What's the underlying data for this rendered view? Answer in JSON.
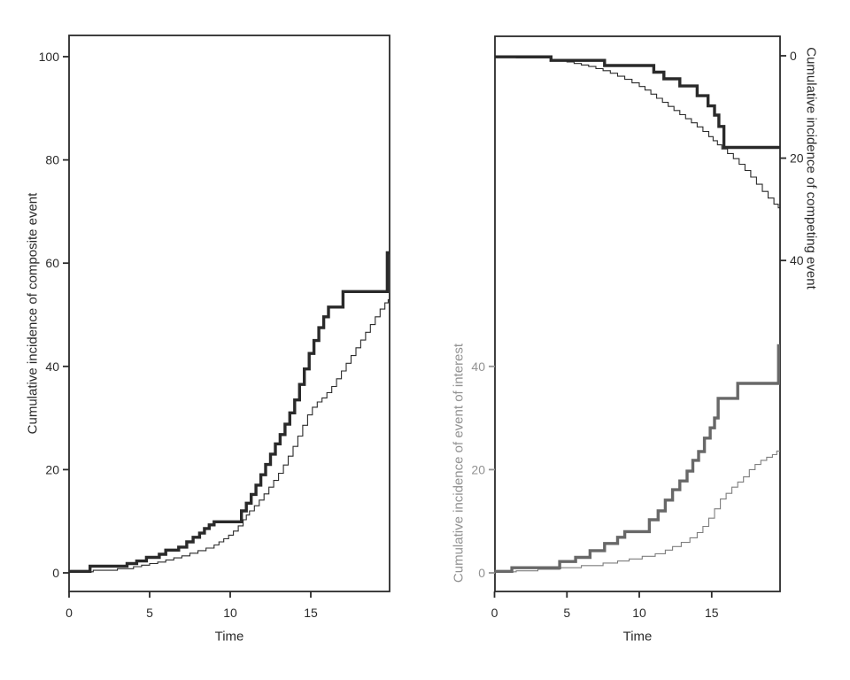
{
  "figure": {
    "background": "#ffffff"
  },
  "colors": {
    "black": "#2a2a2a",
    "gray_thick": "#686868",
    "gray_thin": "#7e7e7e",
    "gray_text": "#929292"
  },
  "chart_data": [
    {
      "type": "line",
      "subtype": "step",
      "title": "",
      "xlabel": "Time",
      "ylabel": "Cumulative incidence of composite event",
      "x_ticks": [
        0,
        5,
        10,
        15
      ],
      "y_ticks": [
        0,
        20,
        40,
        60,
        80,
        100
      ],
      "xlim": [
        0,
        19.9
      ],
      "ylim": [
        0,
        100
      ],
      "grid": false,
      "legend": false,
      "series": [
        {
          "name": "composite-thick",
          "line": "thick",
          "color": "#2a2a2a",
          "points": [
            [
              0,
              0.3
            ],
            [
              1.3,
              1.3
            ],
            [
              3.6,
              1.8
            ],
            [
              4.2,
              2.3
            ],
            [
              4.8,
              3.0
            ],
            [
              5.6,
              3.6
            ],
            [
              6.0,
              4.4
            ],
            [
              6.8,
              5.0
            ],
            [
              7.3,
              6.0
            ],
            [
              7.7,
              6.9
            ],
            [
              8.1,
              7.7
            ],
            [
              8.4,
              8.6
            ],
            [
              8.7,
              9.3
            ],
            [
              9.0,
              9.9
            ],
            [
              10.7,
              12.0
            ],
            [
              11.0,
              13.5
            ],
            [
              11.3,
              15.2
            ],
            [
              11.6,
              17.0
            ],
            [
              11.9,
              19.0
            ],
            [
              12.2,
              21.0
            ],
            [
              12.5,
              23.0
            ],
            [
              12.8,
              25.0
            ],
            [
              13.1,
              26.8
            ],
            [
              13.4,
              28.8
            ],
            [
              13.7,
              31.0
            ],
            [
              14.0,
              33.5
            ],
            [
              14.3,
              36.5
            ],
            [
              14.6,
              39.5
            ],
            [
              14.9,
              42.5
            ],
            [
              15.2,
              45.0
            ],
            [
              15.5,
              47.5
            ],
            [
              15.8,
              49.6
            ],
            [
              16.1,
              51.5
            ],
            [
              17.0,
              54.5
            ],
            [
              19.75,
              62.0
            ]
          ]
        },
        {
          "name": "composite-thin",
          "line": "thin",
          "color": "#2a2a2a",
          "points": [
            [
              0,
              0.2
            ],
            [
              1.5,
              0.5
            ],
            [
              3.0,
              0.8
            ],
            [
              4.0,
              1.2
            ],
            [
              4.5,
              1.5
            ],
            [
              5.0,
              1.8
            ],
            [
              5.5,
              2.1
            ],
            [
              6.0,
              2.5
            ],
            [
              6.5,
              2.9
            ],
            [
              7.0,
              3.3
            ],
            [
              7.5,
              3.8
            ],
            [
              8.0,
              4.3
            ],
            [
              8.5,
              4.8
            ],
            [
              9.0,
              5.4
            ],
            [
              9.3,
              6.0
            ],
            [
              9.6,
              6.6
            ],
            [
              9.9,
              7.3
            ],
            [
              10.2,
              8.1
            ],
            [
              10.5,
              9.1
            ],
            [
              10.8,
              10.3
            ],
            [
              11.0,
              11.2
            ],
            [
              11.2,
              12.0
            ],
            [
              11.5,
              13.0
            ],
            [
              11.8,
              14.1
            ],
            [
              12.1,
              15.3
            ],
            [
              12.4,
              16.6
            ],
            [
              12.7,
              17.9
            ],
            [
              13.0,
              19.3
            ],
            [
              13.3,
              20.9
            ],
            [
              13.6,
              22.6
            ],
            [
              13.9,
              24.5
            ],
            [
              14.2,
              26.5
            ],
            [
              14.5,
              28.6
            ],
            [
              14.8,
              30.6
            ],
            [
              15.1,
              32.1
            ],
            [
              15.4,
              33.1
            ],
            [
              15.7,
              33.9
            ],
            [
              16.0,
              34.9
            ],
            [
              16.3,
              36.1
            ],
            [
              16.6,
              37.6
            ],
            [
              16.9,
              39.1
            ],
            [
              17.2,
              40.6
            ],
            [
              17.5,
              42.1
            ],
            [
              17.8,
              43.6
            ],
            [
              18.1,
              45.1
            ],
            [
              18.4,
              46.6
            ],
            [
              18.7,
              48.1
            ],
            [
              19.0,
              49.6
            ],
            [
              19.3,
              51.1
            ],
            [
              19.6,
              52.3
            ],
            [
              19.8,
              52.9
            ]
          ]
        }
      ]
    },
    {
      "type": "line",
      "subtype": "step",
      "title": "",
      "xlabel": "Time",
      "x_ticks": [
        0,
        5,
        10,
        15
      ],
      "xlim": [
        0,
        19.7
      ],
      "grid": false,
      "legend": false,
      "left_axis": {
        "label": "Cumulative incidence of event of interest",
        "ticks": [
          0,
          20,
          40
        ],
        "direction": "up",
        "color": "#929292"
      },
      "right_axis": {
        "label": "Cumulative incidence of competing event",
        "ticks": [
          0,
          20,
          40
        ],
        "direction": "down",
        "color": "#2a2a2a"
      },
      "series": [
        {
          "name": "competing-thin",
          "axis": "right",
          "line": "thin",
          "color": "#2a2a2a",
          "points": [
            [
              0,
              0.2
            ],
            [
              1.5,
              0.4
            ],
            [
              3.9,
              0.9
            ],
            [
              5.0,
              1.2
            ],
            [
              5.5,
              1.5
            ],
            [
              6.0,
              1.8
            ],
            [
              6.5,
              2.1
            ],
            [
              7.0,
              2.5
            ],
            [
              7.5,
              2.9
            ],
            [
              8.0,
              3.4
            ],
            [
              8.5,
              4.0
            ],
            [
              9.0,
              4.6
            ],
            [
              9.5,
              5.3
            ],
            [
              10.0,
              6.0
            ],
            [
              10.4,
              6.7
            ],
            [
              10.8,
              7.5
            ],
            [
              11.2,
              8.3
            ],
            [
              11.6,
              9.1
            ],
            [
              12.0,
              9.9
            ],
            [
              12.4,
              10.7
            ],
            [
              12.8,
              11.5
            ],
            [
              13.2,
              12.3
            ],
            [
              13.6,
              13.1
            ],
            [
              14.0,
              13.9
            ],
            [
              14.4,
              14.8
            ],
            [
              14.8,
              15.8
            ],
            [
              15.1,
              16.6
            ],
            [
              15.4,
              17.4
            ],
            [
              15.7,
              18.2
            ],
            [
              16.1,
              19.1
            ],
            [
              16.5,
              20.1
            ],
            [
              16.9,
              21.2
            ],
            [
              17.3,
              22.4
            ],
            [
              17.7,
              23.7
            ],
            [
              18.1,
              25.1
            ],
            [
              18.5,
              26.5
            ],
            [
              18.9,
              27.8
            ],
            [
              19.3,
              29.0
            ],
            [
              19.6,
              29.7
            ]
          ]
        },
        {
          "name": "competing-thick",
          "axis": "right",
          "line": "thick",
          "color": "#2a2a2a",
          "points": [
            [
              0,
              0.2
            ],
            [
              3.9,
              0.9
            ],
            [
              7.6,
              1.9
            ],
            [
              11.0,
              3.2
            ],
            [
              11.7,
              4.5
            ],
            [
              12.8,
              5.9
            ],
            [
              14.0,
              7.8
            ],
            [
              14.75,
              9.8
            ],
            [
              15.2,
              11.6
            ],
            [
              15.5,
              13.8
            ],
            [
              15.85,
              17.9
            ]
          ]
        },
        {
          "name": "interest-thin",
          "axis": "left",
          "line": "thin",
          "color": "#7e7e7e",
          "points": [
            [
              0,
              0.2
            ],
            [
              1.5,
              0.4
            ],
            [
              3.0,
              0.7
            ],
            [
              4.5,
              1.0
            ],
            [
              6.0,
              1.4
            ],
            [
              7.5,
              1.9
            ],
            [
              8.5,
              2.3
            ],
            [
              9.3,
              2.7
            ],
            [
              10.2,
              3.2
            ],
            [
              11.1,
              3.7
            ],
            [
              11.8,
              4.4
            ],
            [
              12.3,
              5.1
            ],
            [
              12.9,
              5.9
            ],
            [
              13.5,
              6.8
            ],
            [
              14.0,
              7.8
            ],
            [
              14.4,
              9.0
            ],
            [
              14.8,
              10.6
            ],
            [
              15.2,
              12.4
            ],
            [
              15.6,
              14.3
            ],
            [
              16.0,
              15.4
            ],
            [
              16.4,
              16.6
            ],
            [
              16.8,
              17.6
            ],
            [
              17.2,
              18.6
            ],
            [
              17.6,
              20.0
            ],
            [
              18.0,
              21.0
            ],
            [
              18.4,
              21.8
            ],
            [
              18.8,
              22.4
            ],
            [
              19.2,
              22.9
            ],
            [
              19.5,
              23.6
            ]
          ]
        },
        {
          "name": "interest-thick",
          "axis": "left",
          "line": "thick",
          "color": "#686868",
          "points": [
            [
              0,
              0.3
            ],
            [
              1.2,
              1.0
            ],
            [
              4.5,
              2.2
            ],
            [
              5.6,
              3.0
            ],
            [
              6.6,
              4.3
            ],
            [
              7.6,
              5.7
            ],
            [
              8.5,
              6.9
            ],
            [
              9.0,
              8.0
            ],
            [
              10.7,
              10.3
            ],
            [
              11.3,
              12.0
            ],
            [
              11.8,
              14.1
            ],
            [
              12.3,
              16.1
            ],
            [
              12.8,
              17.8
            ],
            [
              13.3,
              19.7
            ],
            [
              13.7,
              21.8
            ],
            [
              14.1,
              23.5
            ],
            [
              14.5,
              26.1
            ],
            [
              14.9,
              28.1
            ],
            [
              15.2,
              30.0
            ],
            [
              15.45,
              33.8
            ],
            [
              16.8,
              36.7
            ],
            [
              19.62,
              44.0
            ]
          ]
        }
      ]
    }
  ]
}
